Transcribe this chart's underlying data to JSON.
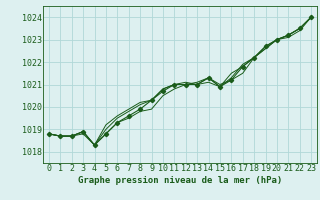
{
  "title": "Graphe pression niveau de la mer (hPa)",
  "xlabel": "Graphe pression niveau de la mer (hPa)",
  "ylim": [
    1017.5,
    1024.5
  ],
  "xlim": [
    -0.5,
    23.5
  ],
  "yticks": [
    1018,
    1019,
    1020,
    1021,
    1022,
    1023,
    1024
  ],
  "xticks": [
    0,
    1,
    2,
    3,
    4,
    5,
    6,
    7,
    8,
    9,
    10,
    11,
    12,
    13,
    14,
    15,
    16,
    17,
    18,
    19,
    20,
    21,
    22,
    23
  ],
  "bg_color": "#ddf0f0",
  "grid_color": "#b0d8d8",
  "line_color": "#1a5c1a",
  "marker_color": "#1a5c1a",
  "series": [
    [
      1018.8,
      1018.7,
      1018.7,
      1018.8,
      1018.3,
      1018.8,
      1019.3,
      1019.5,
      1019.8,
      1019.9,
      1020.5,
      1020.8,
      1021.0,
      1021.0,
      1021.3,
      1021.0,
      1021.2,
      1021.5,
      1022.2,
      1022.6,
      1023.0,
      1023.1,
      1023.4,
      1024.0
    ],
    [
      1018.8,
      1018.7,
      1018.7,
      1018.9,
      1018.3,
      1018.8,
      1019.3,
      1019.6,
      1019.9,
      1020.3,
      1020.7,
      1021.0,
      1021.0,
      1021.0,
      1021.3,
      1020.9,
      1021.2,
      1021.8,
      1022.2,
      1022.7,
      1023.0,
      1023.2,
      1023.5,
      1024.0
    ],
    [
      1018.8,
      1018.7,
      1018.7,
      1018.9,
      1018.3,
      1019.0,
      1019.5,
      1019.8,
      1020.1,
      1020.3,
      1020.8,
      1021.0,
      1021.0,
      1021.1,
      1021.3,
      1020.9,
      1021.3,
      1021.9,
      1022.2,
      1022.7,
      1023.0,
      1023.2,
      1023.5,
      1024.0
    ],
    [
      1018.8,
      1018.7,
      1018.7,
      1018.9,
      1018.3,
      1019.2,
      1019.6,
      1019.9,
      1020.2,
      1020.3,
      1020.8,
      1021.0,
      1021.1,
      1021.0,
      1021.1,
      1020.9,
      1021.5,
      1021.8,
      1022.2,
      1022.6,
      1023.0,
      1023.2,
      1023.5,
      1024.0
    ]
  ],
  "marker_series_idx": 1,
  "label_fontsize": 6.5,
  "tick_fontsize": 6.0
}
